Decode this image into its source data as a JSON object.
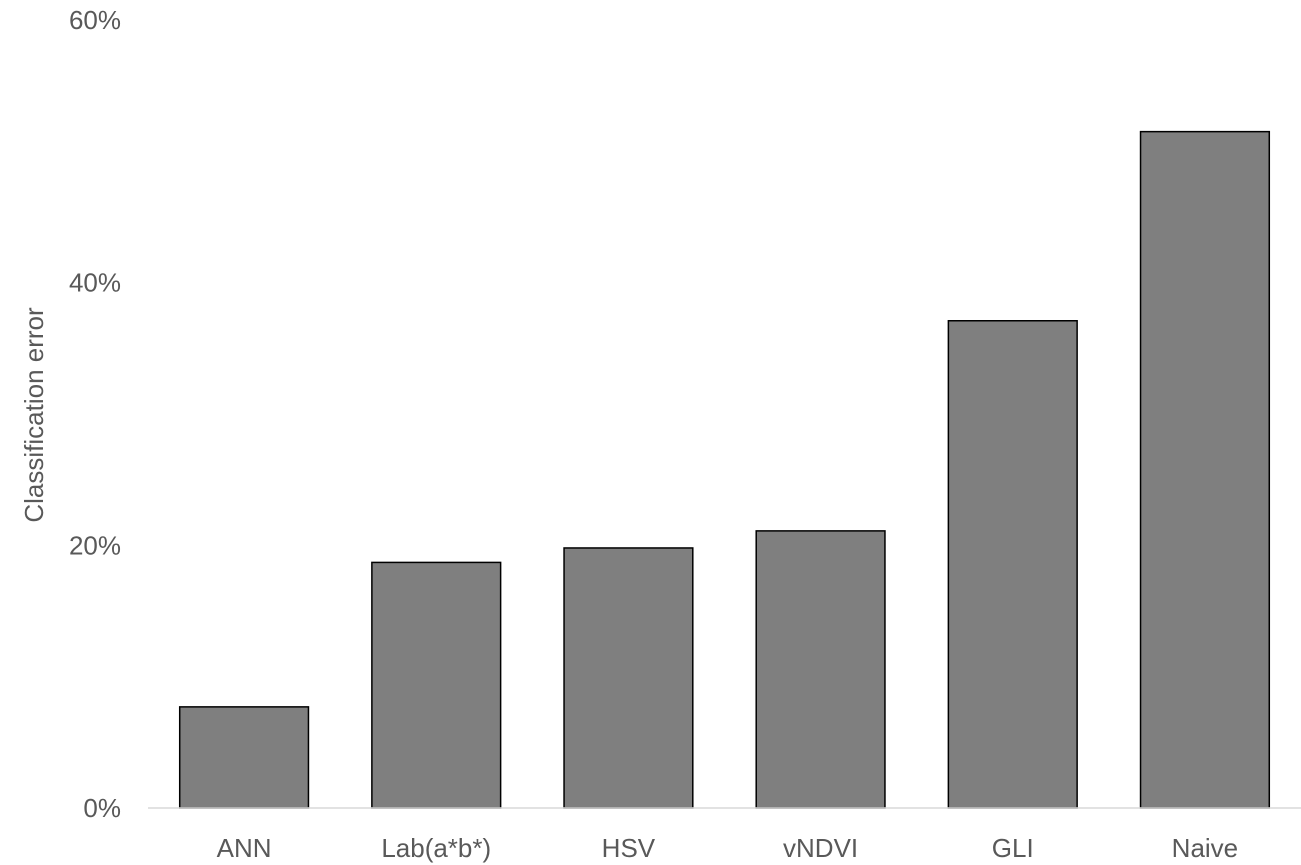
{
  "chart_data": {
    "type": "bar",
    "title": "",
    "xlabel": "",
    "ylabel": "Classification error",
    "categories": [
      "ANN",
      "Lab(a*b*)",
      "HSV",
      "vNDVI",
      "GLI",
      "Naive"
    ],
    "values": [
      7.7,
      18.7,
      19.8,
      21.1,
      37.1,
      51.5
    ],
    "value_unit": "%",
    "ylim": [
      0,
      60
    ],
    "yticks": [
      0,
      20,
      40,
      60
    ],
    "ytick_labels": [
      "0%",
      "20%",
      "40%",
      "60%"
    ],
    "grid": false,
    "legend": "none",
    "colors": {
      "bar_fill": "#7f7f7f",
      "bar_stroke": "#000000",
      "axis_line": "#d9d9d9",
      "text": "#595959"
    }
  }
}
